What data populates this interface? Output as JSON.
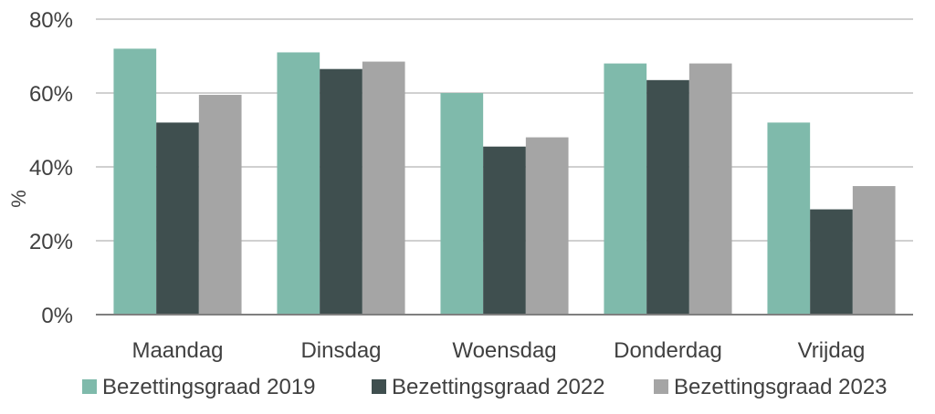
{
  "chart_data": {
    "type": "bar",
    "title": "",
    "xlabel": "",
    "ylabel": "%",
    "ylim": [
      0,
      80
    ],
    "yticks": [
      0,
      20,
      40,
      60,
      80
    ],
    "ytick_labels": [
      "0%",
      "20%",
      "40%",
      "60%",
      "80%"
    ],
    "grid": true,
    "legend_position": "bottom",
    "categories": [
      "Maandag",
      "Dinsdag",
      "Woensdag",
      "Donderdag",
      "Vrijdag"
    ],
    "series": [
      {
        "name": "Bezettingsgraad 2019",
        "color": "#7fbaab",
        "values": [
          72,
          71,
          60,
          68,
          52
        ]
      },
      {
        "name": "Bezettingsgraad 2022",
        "color": "#3f4f4f",
        "values": [
          52,
          66.5,
          45.5,
          63.5,
          28.5
        ]
      },
      {
        "name": "Bezettingsgraad 2023",
        "color": "#a5a5a5",
        "values": [
          59.5,
          68.5,
          48,
          68,
          34.8
        ]
      }
    ]
  }
}
